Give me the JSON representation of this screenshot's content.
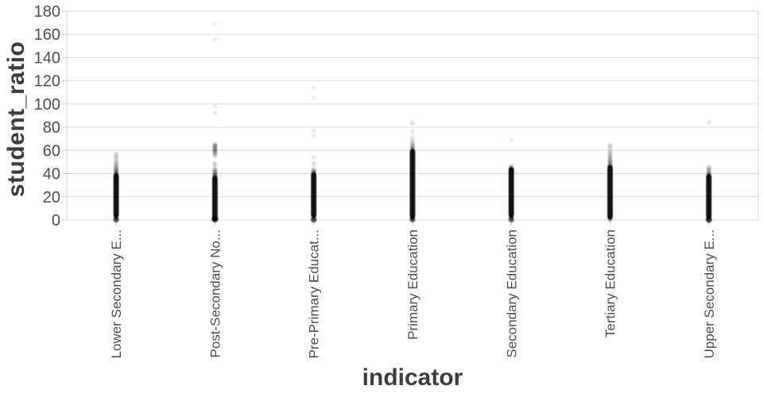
{
  "chart_data": {
    "type": "scatter",
    "subtype": "strip-plot",
    "title": "",
    "xlabel": "indicator",
    "ylabel": "student_ratio",
    "ylim": [
      0,
      180
    ],
    "yticks": [
      0,
      20,
      40,
      60,
      80,
      100,
      120,
      140,
      160,
      180
    ],
    "grid": "horizontal",
    "legend": "none",
    "point_color": "#000000",
    "colors": {
      "background": "#ffffff",
      "gridline": "#dcdcdc",
      "spine": "#d6d6d6",
      "tick_mark": "#c9c9c9",
      "tick_label": "#4d4d4d",
      "axis_title": "#3d3d3d"
    },
    "x_categories": [
      "Lower Secondary E...",
      "Post-Secondary No...",
      "Pre-Primary Educat...",
      "Primary Education",
      "Secondary Education",
      "Tertiary Education",
      "Upper Secondary E..."
    ],
    "series": [
      {
        "category": "Lower Secondary E...",
        "dense_range": [
          4.5,
          37.5
        ],
        "points_va": [
          [
            57,
            0.1
          ],
          [
            55.5,
            0.08
          ],
          [
            54,
            0.1
          ],
          [
            52.5,
            0.08
          ],
          [
            51,
            0.1
          ],
          [
            49.5,
            0.12
          ],
          [
            48,
            0.14
          ],
          [
            46.5,
            0.16
          ],
          [
            45,
            0.2
          ],
          [
            43.5,
            0.24
          ],
          [
            42,
            0.3
          ],
          [
            40.5,
            0.36
          ],
          [
            39,
            0.44
          ],
          [
            38.2,
            0.55
          ],
          [
            3.2,
            0.5
          ],
          [
            2.2,
            0.32
          ],
          [
            1.3,
            0.2
          ]
        ],
        "zero_point": [
          0.3,
          0.65
        ],
        "zero_radius": 3.6
      },
      {
        "category": "Post-Secondary No...",
        "dense_range": [
          1.5,
          35.5
        ],
        "points_va": [
          [
            169,
            0.07
          ],
          [
            155.5,
            0.07
          ],
          [
            98,
            0.08
          ],
          [
            92,
            0.08
          ],
          [
            65,
            0.2
          ],
          [
            63.5,
            0.26
          ],
          [
            62,
            0.22
          ],
          [
            60.5,
            0.28
          ],
          [
            59,
            0.24
          ],
          [
            57.5,
            0.18
          ],
          [
            56,
            0.13
          ],
          [
            54.5,
            0.09
          ],
          [
            48,
            0.2
          ],
          [
            44,
            0.2
          ],
          [
            42.5,
            0.16
          ],
          [
            41,
            0.26
          ],
          [
            39.5,
            0.3
          ],
          [
            38,
            0.38
          ],
          [
            36.8,
            0.48
          ]
        ],
        "zero_point": [
          0.8,
          0.85
        ],
        "zero_radius": 4.2
      },
      {
        "category": "Pre-Primary Educat...",
        "dense_range": [
          4.5,
          38.5
        ],
        "points_va": [
          [
            114,
            0.07
          ],
          [
            105,
            0.07
          ],
          [
            77,
            0.09
          ],
          [
            72.5,
            0.09
          ],
          [
            54,
            0.09
          ],
          [
            48.5,
            0.12
          ],
          [
            44,
            0.1
          ],
          [
            42.5,
            0.24
          ],
          [
            41,
            0.34
          ],
          [
            39.8,
            0.48
          ],
          [
            3.4,
            0.5
          ],
          [
            2.4,
            0.3
          ]
        ],
        "zero_point": [
          0.3,
          0.7
        ],
        "zero_radius": 3.7
      },
      {
        "category": "Primary Education",
        "dense_range": [
          3.5,
          58.5
        ],
        "points_va": [
          [
            84,
            0.09
          ],
          [
            82.5,
            0.06
          ],
          [
            76.5,
            0.09
          ],
          [
            71,
            0.1
          ],
          [
            68.5,
            0.09
          ],
          [
            66.5,
            0.12
          ],
          [
            65,
            0.15
          ],
          [
            63.5,
            0.18
          ],
          [
            62,
            0.24
          ],
          [
            60.5,
            0.32
          ],
          [
            59.5,
            0.45
          ],
          [
            2.4,
            0.5
          ],
          [
            1.5,
            0.3
          ]
        ],
        "zero_point": [
          0.3,
          0.6
        ],
        "zero_radius": 3.6
      },
      {
        "category": "Secondary Education",
        "dense_range": [
          5,
          43.2
        ],
        "points_va": [
          [
            68.5,
            0.07
          ],
          [
            46.5,
            0.12
          ],
          [
            45,
            0.22
          ],
          [
            44,
            0.35
          ],
          [
            3.8,
            0.55
          ],
          [
            2.8,
            0.36
          ],
          [
            1.8,
            0.22
          ]
        ],
        "zero_point": [
          0.3,
          0.6
        ],
        "zero_radius": 3.6
      },
      {
        "category": "Tertiary Education",
        "dense_range": [
          3,
          45
        ],
        "points_va": [
          [
            64.5,
            0.12
          ],
          [
            63,
            0.09
          ],
          [
            61,
            0.08
          ],
          [
            58.5,
            0.14
          ],
          [
            57,
            0.11
          ],
          [
            55.5,
            0.13
          ],
          [
            54,
            0.15
          ],
          [
            52.5,
            0.17
          ],
          [
            51,
            0.19
          ],
          [
            49.5,
            0.22
          ],
          [
            48,
            0.27
          ],
          [
            46.5,
            0.35
          ],
          [
            2,
            0.45
          ],
          [
            1.2,
            0.26
          ],
          [
            0.5,
            0.18
          ]
        ],
        "zero_point": null,
        "zero_radius": 3.6
      },
      {
        "category": "Upper Secondary E...",
        "dense_range": [
          3.5,
          37.2
        ],
        "points_va": [
          [
            84,
            0.09
          ],
          [
            45.5,
            0.14
          ],
          [
            44,
            0.2
          ],
          [
            42.5,
            0.13
          ],
          [
            41,
            0.24
          ],
          [
            39.5,
            0.3
          ],
          [
            38.2,
            0.42
          ],
          [
            2.4,
            0.45
          ],
          [
            1.5,
            0.26
          ]
        ],
        "zero_point": [
          0.3,
          0.75
        ],
        "zero_radius": 3.9
      }
    ]
  }
}
